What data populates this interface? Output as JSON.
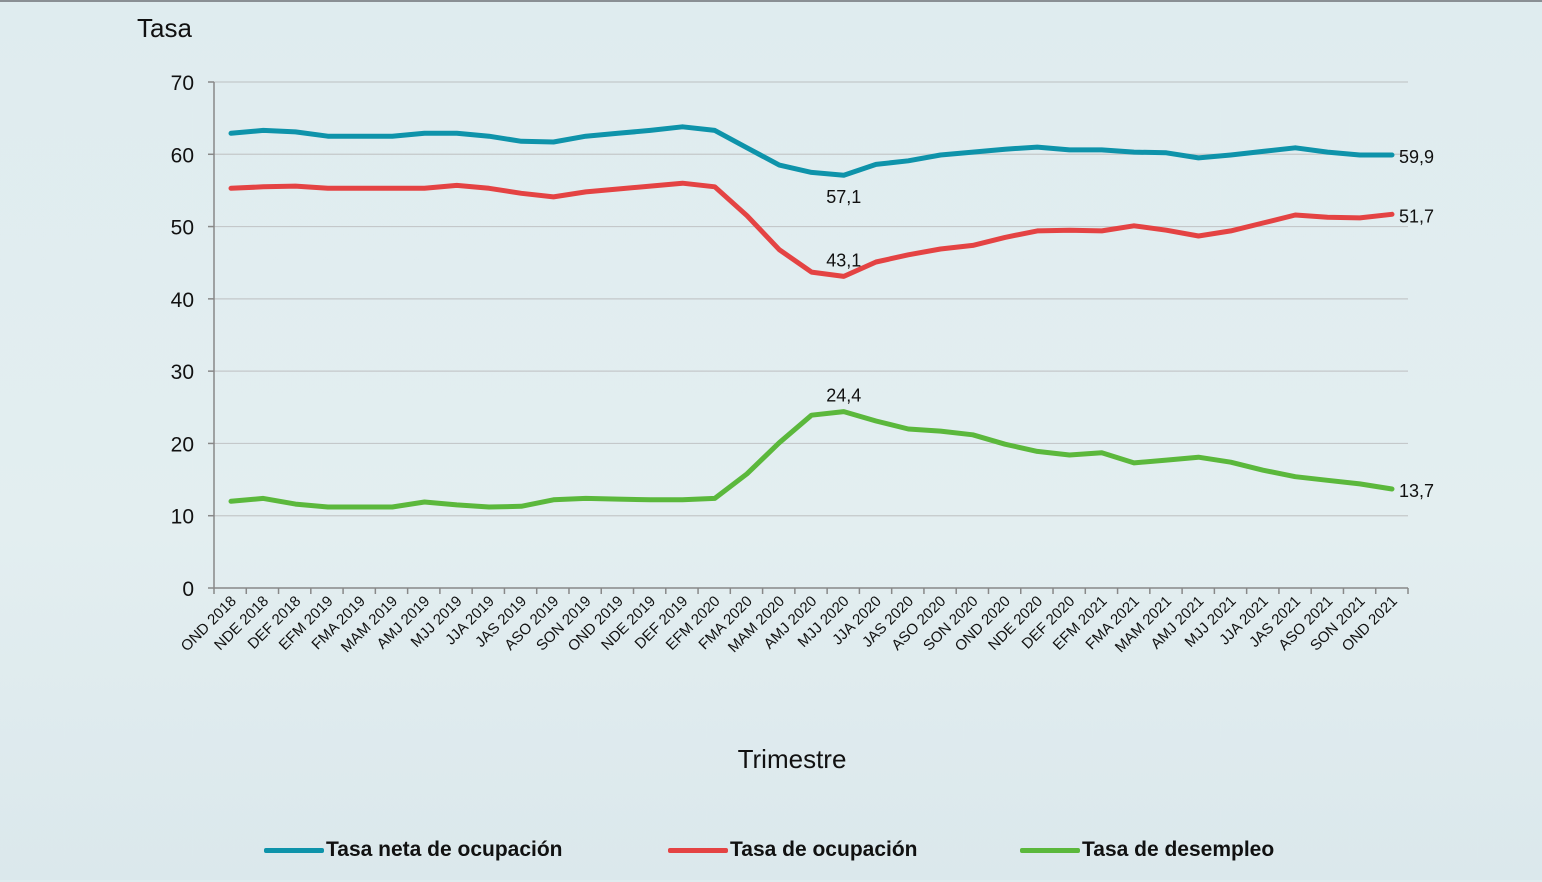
{
  "chart_data": {
    "type": "line",
    "ylabel": "Tasa",
    "xlabel": "Trimestre",
    "ylim": [
      0,
      70
    ],
    "yticks": [
      0,
      10,
      20,
      30,
      40,
      50,
      60,
      70
    ],
    "grid": true,
    "legend_position": "bottom",
    "categories": [
      "OND 2018",
      "NDE 2018",
      "DEF 2018",
      "EFM 2019",
      "FMA 2019",
      "MAM 2019",
      "AMJ 2019",
      "MJJ 2019",
      "JJA 2019",
      "JAS 2019",
      "ASO 2019",
      "SON 2019",
      "OND 2019",
      "NDE 2019",
      "DEF 2019",
      "EFM 2020",
      "FMA 2020",
      "MAM 2020",
      "AMJ 2020",
      "MJJ 2020",
      "JJA 2020",
      "JAS 2020",
      "ASO 2020",
      "SON 2020",
      "OND 2020",
      "NDE 2020",
      "DEF 2020",
      "EFM 2021",
      "FMA 2021",
      "MAM 2021",
      "AMJ 2021",
      "MJJ 2021",
      "JJA 2021",
      "JAS 2021",
      "ASO 2021",
      "SON 2021",
      "OND 2021"
    ],
    "series": [
      {
        "name": "Tasa neta de ocupación",
        "color": "#0e93aa",
        "values": [
          62.9,
          63.3,
          63.1,
          62.5,
          62.5,
          62.5,
          62.9,
          62.9,
          62.5,
          61.8,
          61.7,
          62.5,
          62.9,
          63.3,
          63.8,
          63.3,
          60.9,
          58.5,
          57.5,
          57.1,
          58.6,
          59.1,
          59.9,
          60.3,
          60.7,
          61.0,
          60.6,
          60.6,
          60.3,
          60.2,
          59.5,
          59.9,
          60.4,
          60.9,
          60.3,
          59.9,
          59.9
        ],
        "labels": [
          {
            "category": "MJJ 2020",
            "text": "57,1",
            "pos": "below"
          },
          {
            "category": "OND 2021",
            "text": "59,9",
            "pos": "right"
          }
        ]
      },
      {
        "name": "Tasa de ocupación",
        "color": "#e44343",
        "values": [
          55.3,
          55.5,
          55.6,
          55.3,
          55.3,
          55.3,
          55.3,
          55.7,
          55.3,
          54.6,
          54.1,
          54.8,
          55.2,
          55.6,
          56.0,
          55.5,
          51.5,
          46.8,
          43.7,
          43.1,
          45.1,
          46.1,
          46.9,
          47.4,
          48.5,
          49.4,
          49.5,
          49.4,
          50.1,
          49.5,
          48.7,
          49.4,
          50.5,
          51.6,
          51.3,
          51.2,
          51.7
        ],
        "labels": [
          {
            "category": "MJJ 2020",
            "text": "43,1",
            "pos": "above"
          },
          {
            "category": "OND 2021",
            "text": "51,7",
            "pos": "right"
          }
        ]
      },
      {
        "name": "Tasa de desempleo",
        "color": "#5bb83c",
        "values": [
          12.0,
          12.4,
          11.6,
          11.2,
          11.2,
          11.2,
          11.9,
          11.5,
          11.2,
          11.3,
          12.2,
          12.4,
          12.3,
          12.2,
          12.2,
          12.4,
          15.8,
          20.1,
          23.9,
          24.4,
          23.1,
          22.0,
          21.7,
          21.2,
          19.9,
          18.9,
          18.4,
          18.7,
          17.3,
          17.7,
          18.1,
          17.4,
          16.3,
          15.4,
          14.9,
          14.4,
          13.7
        ],
        "labels": [
          {
            "category": "MJJ 2020",
            "text": "24,4",
            "pos": "above"
          },
          {
            "category": "OND 2021",
            "text": "13,7",
            "pos": "right"
          }
        ]
      }
    ]
  }
}
